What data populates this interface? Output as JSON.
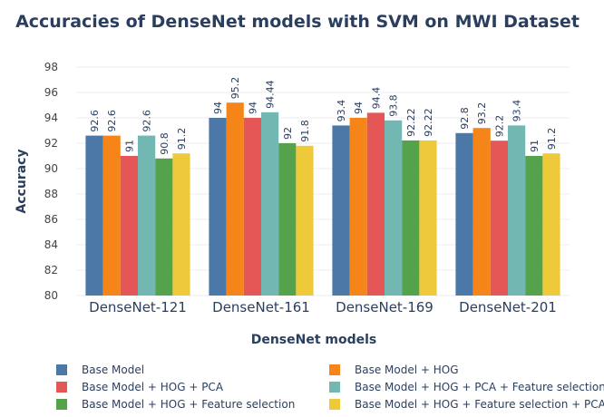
{
  "chart_data": {
    "type": "bar",
    "title": "Accuracies of DenseNet models with SVM on MWI Dataset",
    "xlabel": "DenseNet models",
    "ylabel": "Accuracy",
    "ylim": [
      80,
      98
    ],
    "yticks": [
      "80",
      "82",
      "84",
      "86",
      "88",
      "90",
      "92",
      "94",
      "96",
      "98"
    ],
    "categories": [
      "DenseNet-121",
      "DenseNet-161",
      "DenseNet-169",
      "DenseNet-201"
    ],
    "grid": true,
    "legend_position": "bottom",
    "series": [
      {
        "name": "Base Model",
        "color": "#4c78a8",
        "values": [
          92.6,
          94,
          93.4,
          92.8
        ],
        "labels": [
          "92.6",
          "94",
          "93.4",
          "92.8"
        ]
      },
      {
        "name": "Base Model +  HOG",
        "color": "#f58518",
        "values": [
          92.6,
          95.2,
          94,
          93.2
        ],
        "labels": [
          "92.6",
          "95.2",
          "94",
          "93.2"
        ]
      },
      {
        "name": "Base Model +  HOG + PCA",
        "color": "#e45756",
        "values": [
          91,
          94,
          94.4,
          92.2
        ],
        "labels": [
          "91",
          "94",
          "94.4",
          "92.2"
        ]
      },
      {
        "name": "Base Model +  HOG + PCA + Feature selection",
        "color": "#72b7b2",
        "values": [
          92.6,
          94.44,
          93.8,
          93.4
        ],
        "labels": [
          "92.6",
          "94.44",
          "93.8",
          "93.4"
        ]
      },
      {
        "name": "Base Model +  HOG + Feature selection",
        "color": "#54a24b",
        "values": [
          90.8,
          92,
          92.22,
          91
        ],
        "labels": [
          "90.8",
          "92",
          "92.22",
          "91"
        ]
      },
      {
        "name": "Base Model +  HOG + Feature selection + PCA",
        "color": "#eeca3b",
        "values": [
          91.2,
          91.8,
          92.22,
          91.2
        ],
        "labels": [
          "91.2",
          "91.8",
          "92.22",
          "91.2"
        ]
      }
    ]
  }
}
